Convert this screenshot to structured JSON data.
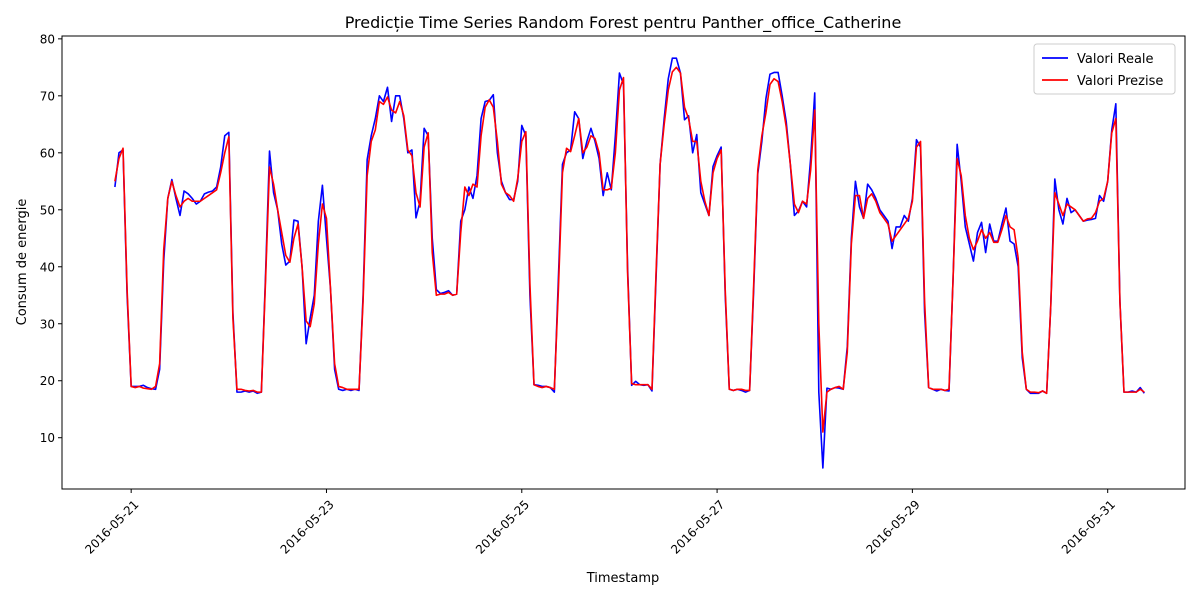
{
  "chart_data": {
    "type": "line",
    "title": "Predicție Time Series Random Forest pentru Panther_office_Catherine",
    "xlabel": "Timestamp",
    "ylabel": "Consum de energie",
    "xlim": [
      "2016-05-20T07:00",
      "2016-05-31T19:00"
    ],
    "ylim": [
      1,
      80.5
    ],
    "x_ticks": [
      "2016-05-21",
      "2016-05-23",
      "2016-05-25",
      "2016-05-27",
      "2016-05-29",
      "2016-05-31"
    ],
    "y_ticks": [
      10,
      20,
      30,
      40,
      50,
      60,
      70,
      80
    ],
    "legend_position": "top-right",
    "grid": false,
    "x_start": "2016-05-20T20:00",
    "x_step_hours": 1,
    "series": [
      {
        "name": "Valori Reale",
        "color": "#0000ff",
        "values": [
          54,
          60,
          60.5,
          35,
          19,
          19,
          19,
          19.2,
          18.8,
          18.6,
          18.5,
          22,
          41,
          52,
          55.3,
          52,
          49,
          53.3,
          52.8,
          52,
          51,
          51.5,
          52.8,
          53.1,
          53.3,
          54,
          57.5,
          63,
          63.6,
          32,
          18,
          18,
          18.2,
          18,
          18.2,
          17.8,
          18,
          38,
          60.3,
          53,
          50,
          44,
          40.3,
          41,
          48.2,
          48,
          40,
          26.5,
          31,
          35,
          48,
          54.3,
          45,
          36,
          22,
          18.5,
          18.3,
          18.5,
          18.3,
          18.5,
          18.3,
          35,
          58.8,
          63,
          66,
          70,
          69,
          71.5,
          65.5,
          70,
          70,
          66,
          60,
          60.5,
          48.6,
          51.5,
          64.3,
          63,
          45,
          36,
          35.3,
          35.5,
          35.8,
          35,
          35.2,
          48,
          50,
          54,
          52,
          56,
          66,
          69,
          69.2,
          70.2,
          60,
          55,
          53,
          51.8,
          51.8,
          55,
          64.8,
          63,
          35,
          19.3,
          19.2,
          19,
          19,
          18.8,
          18,
          38,
          58,
          60,
          60.5,
          67.2,
          66,
          59,
          62,
          64.3,
          62,
          59,
          52.5,
          56.5,
          53.5,
          63,
          74,
          72,
          40,
          19.2,
          19.9,
          19.3,
          19.2,
          19.3,
          18.2,
          38,
          58,
          66,
          73,
          76.6,
          76.6,
          74,
          65.8,
          66.5,
          60,
          63.2,
          53,
          51,
          49,
          57.6,
          59.5,
          61,
          35,
          18.5,
          18.3,
          18.5,
          18.3,
          18,
          18.3,
          36,
          56.3,
          62,
          69.5,
          73.8,
          74.1,
          74.1,
          70,
          65.4,
          58,
          49,
          49.8,
          51.5,
          50.5,
          59,
          70.5,
          18,
          4.7,
          18.7,
          18.5,
          18.8,
          18.7,
          18.5,
          26,
          45,
          55,
          50.5,
          48.5,
          54.5,
          53.5,
          52,
          50,
          49,
          48,
          43.2,
          47,
          47,
          49,
          48,
          52,
          62.3,
          61,
          32,
          18.8,
          18.5,
          18.2,
          18.5,
          18.3,
          18.2,
          38,
          61.5,
          55,
          47,
          44,
          41,
          46,
          47.8,
          42.5,
          47.5,
          44.5,
          44.5,
          47.5,
          50.3,
          44.5,
          44,
          40,
          24,
          18.5,
          17.8,
          17.8,
          17.8,
          18.2,
          17.8,
          33,
          55.4,
          50,
          47.5,
          52,
          49.5,
          50,
          49,
          48,
          48.2,
          48.3,
          48.5,
          52.5,
          51.5,
          55,
          64,
          68.6,
          34,
          18,
          18,
          18.2,
          18,
          18.8,
          17.8
        ]
      },
      {
        "name": "Valori Prezise",
        "color": "#ff0000",
        "values": [
          55,
          59,
          60.8,
          36,
          19,
          18.8,
          19,
          18.7,
          18.6,
          18.5,
          19,
          23,
          43,
          52,
          55,
          52.5,
          50.5,
          51.5,
          52,
          51.5,
          51.5,
          51.5,
          52,
          52.5,
          53,
          53.5,
          56.5,
          60,
          62.8,
          31,
          18.5,
          18.5,
          18.3,
          18.2,
          18.3,
          18,
          18,
          37,
          57.5,
          54.5,
          50,
          46,
          42,
          40.8,
          45,
          47.5,
          40,
          30.5,
          29.5,
          33.5,
          44,
          51,
          48.5,
          36,
          23,
          19,
          18.8,
          18.5,
          18.5,
          18.5,
          18.5,
          34,
          56,
          62,
          64,
          69,
          68.5,
          69.8,
          67.5,
          67,
          69,
          66.5,
          60.5,
          59.5,
          53,
          50.5,
          61,
          63.5,
          42.5,
          35,
          35.2,
          35.2,
          35.5,
          35,
          35.2,
          46,
          54,
          52.5,
          54.5,
          54,
          63,
          68,
          69.3,
          68,
          62,
          54.5,
          53,
          52.5,
          51.5,
          55.5,
          62,
          63.7,
          37,
          19.3,
          19,
          18.8,
          19,
          18.8,
          18.5,
          36,
          56.5,
          60.8,
          60.2,
          63,
          66,
          60,
          61,
          63,
          62.5,
          60,
          53.5,
          53.5,
          53.8,
          60,
          71,
          73.2,
          39,
          19.5,
          19.3,
          19.3,
          19.3,
          19.3,
          18.5,
          39,
          58,
          65,
          71,
          74.2,
          75,
          74,
          68,
          66,
          62,
          62,
          55,
          51.5,
          49,
          56.5,
          59,
          60.5,
          36,
          18.5,
          18.3,
          18.5,
          18.5,
          18.3,
          18.3,
          37,
          57,
          63,
          67,
          72,
          73,
          72.5,
          69,
          64.5,
          58,
          51,
          49.5,
          51.5,
          51,
          57,
          67.5,
          30,
          11,
          18,
          18.5,
          18.8,
          19,
          18.5,
          25,
          44,
          52.5,
          52.5,
          48.5,
          52,
          52.8,
          51.5,
          49.5,
          48.5,
          47.5,
          44.5,
          45.5,
          46.5,
          47.5,
          48.5,
          51.5,
          61,
          62,
          34,
          18.8,
          18.5,
          18.5,
          18.5,
          18.3,
          18.5,
          38,
          59,
          56,
          49,
          45,
          43,
          44.5,
          46.5,
          45,
          46,
          44.3,
          44.3,
          46.5,
          49,
          47,
          46.5,
          41.5,
          25,
          18.5,
          18,
          18,
          17.9,
          18.2,
          17.8,
          33,
          53,
          51,
          49,
          51,
          50.5,
          50,
          49,
          48,
          48.4,
          48.5,
          49.5,
          51.5,
          52,
          55,
          63.5,
          66,
          34,
          18,
          18,
          18,
          18,
          18.5,
          18
        ]
      }
    ]
  }
}
